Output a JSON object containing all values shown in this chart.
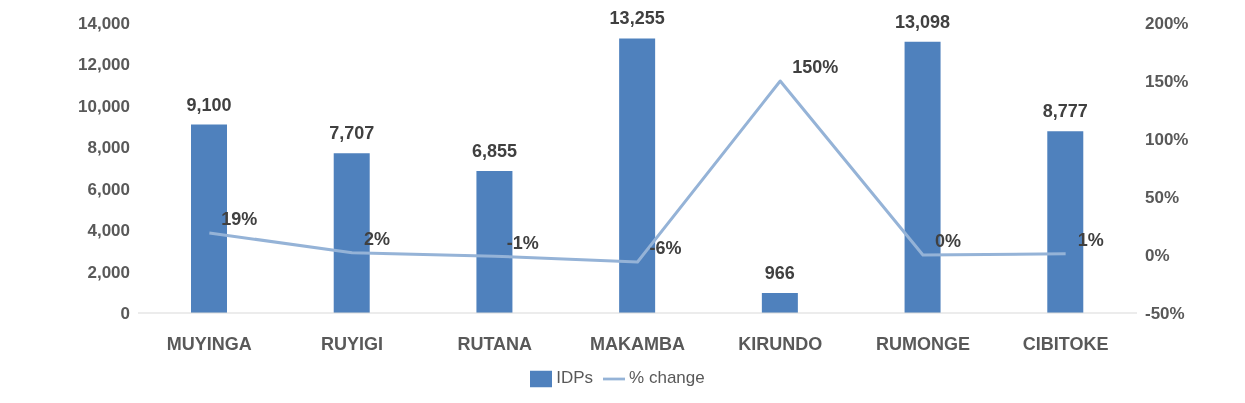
{
  "chart_data": {
    "type": "bar",
    "categories": [
      "MUYINGA",
      "RUYIGI",
      "RUTANA",
      "MAKAMBA",
      "KIRUNDO",
      "RUMONGE",
      "CIBITOKE"
    ],
    "series": [
      {
        "name": "IDPs",
        "color": "#4f81bd",
        "values": [
          9100,
          7707,
          6855,
          13255,
          966,
          13098,
          8777
        ],
        "value_labels": [
          "9,100",
          "7,707",
          "6,855",
          "13,255",
          "966",
          "13,098",
          "8,777"
        ]
      },
      {
        "name": "% change",
        "type": "line",
        "axis": "y2",
        "color": "#95b3d7",
        "values": [
          19,
          2,
          -1,
          -6,
          150,
          0,
          1
        ],
        "value_labels": [
          "19%",
          "2%",
          "-1%",
          "-6%",
          "150%",
          "0%",
          "1%"
        ]
      }
    ],
    "ylim": [
      0,
      14000
    ],
    "yticks": [
      0,
      {
        "value": 2000,
        "label": "2,000"
      },
      {
        "value": 4000,
        "label": "4,000"
      },
      {
        "value": 6000,
        "label": "6,000"
      },
      {
        "value": 8000,
        "label": "8,000"
      },
      {
        "value": 10000,
        "label": "10,000"
      },
      {
        "value": 12000,
        "label": "12,000"
      },
      {
        "value": 14000,
        "label": "14,000"
      }
    ],
    "y2lim": [
      -50,
      200
    ],
    "y2ticks": [
      {
        "value": -50,
        "label": "-50%"
      },
      {
        "value": 0,
        "label": "0%"
      },
      {
        "value": 50,
        "label": "50%"
      },
      {
        "value": 100,
        "label": "100%"
      },
      {
        "value": 150,
        "label": "150%"
      },
      {
        "value": 200,
        "label": "200%"
      }
    ],
    "legend": "bottom",
    "grid": false,
    "marker": "none"
  }
}
